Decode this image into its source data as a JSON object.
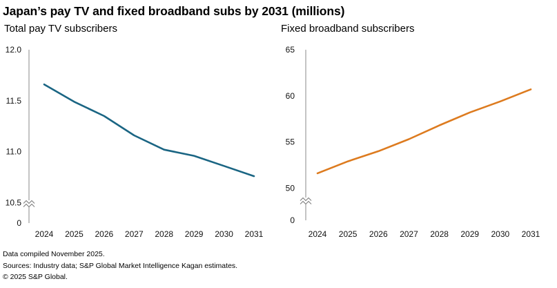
{
  "title": "Japan’s pay TV and fixed broadband subs by 2031 (millions)",
  "footnotes": {
    "compiled": "Data compiled November 2025.",
    "sources": "Sources: Industry data; S&P Global Market Intelligence Kagan estimates.",
    "copyright": "© 2025 S&P Global."
  },
  "chart_data": [
    {
      "type": "line",
      "title": "Total pay TV subscribers",
      "xlabel": "",
      "ylabel": "",
      "color": "#1a6583",
      "x": [
        "2024",
        "2025",
        "2026",
        "2027",
        "2028",
        "2029",
        "2030",
        "2031"
      ],
      "values": [
        11.66,
        11.49,
        11.35,
        11.16,
        11.02,
        10.96,
        10.86,
        10.76
      ],
      "ylim": [
        10.3,
        12.0
      ],
      "yticks": [
        "12.0",
        "11.5",
        "11.0",
        "10.5",
        "0"
      ],
      "ytick_values": [
        12.0,
        11.5,
        11.0,
        10.5,
        10.3
      ],
      "axis_break": true
    },
    {
      "type": "line",
      "title": "Fixed broadband subscribers",
      "xlabel": "",
      "ylabel": "",
      "color": "#dd7b1f",
      "x": [
        "2024",
        "2025",
        "2026",
        "2027",
        "2028",
        "2029",
        "2030",
        "2031"
      ],
      "values": [
        51.6,
        52.9,
        54.0,
        55.3,
        56.8,
        58.2,
        59.4,
        60.7
      ],
      "ylim": [
        46.5,
        65.0
      ],
      "yticks": [
        "65",
        "60",
        "55",
        "50",
        "0"
      ],
      "ytick_values": [
        65,
        60,
        55,
        50,
        46.5
      ],
      "axis_break": true
    }
  ]
}
